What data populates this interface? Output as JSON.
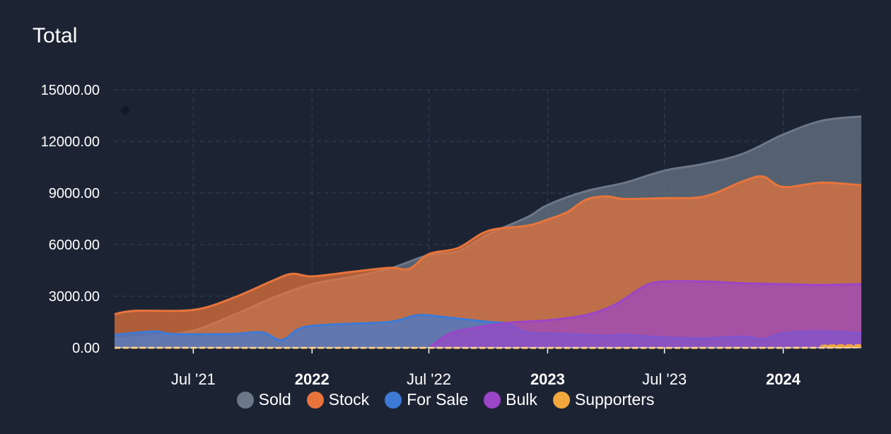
{
  "chart_title": "Total",
  "chart_data": {
    "type": "area",
    "title": "Total",
    "ylim": [
      0,
      15000
    ],
    "y_ticks": [
      "0.00",
      "3000.00",
      "6000.00",
      "9000.00",
      "12000.00",
      "15000.00"
    ],
    "x_range": [
      "2021-03-01",
      "2024-05-01"
    ],
    "x_ticks": [
      {
        "date": "2021-07-01",
        "label": "Jul '21",
        "bold": false
      },
      {
        "date": "2022-01-01",
        "label": "2022",
        "bold": true
      },
      {
        "date": "2022-07-01",
        "label": "Jul '22",
        "bold": false
      },
      {
        "date": "2023-01-01",
        "label": "2023",
        "bold": true
      },
      {
        "date": "2023-07-01",
        "label": "Jul '23",
        "bold": false
      },
      {
        "date": "2024-01-01",
        "label": "2024",
        "bold": true
      }
    ],
    "grid": true,
    "legend_position": "bottom",
    "series": [
      {
        "name": "Sold",
        "color": "#6c7888",
        "points": [
          [
            "2021-03-01",
            500
          ],
          [
            "2021-05-01",
            700
          ],
          [
            "2021-07-01",
            1000
          ],
          [
            "2021-09-01",
            1900
          ],
          [
            "2021-11-01",
            2900
          ],
          [
            "2022-01-01",
            3700
          ],
          [
            "2022-03-01",
            4100
          ],
          [
            "2022-05-01",
            4600
          ],
          [
            "2022-07-01",
            5400
          ],
          [
            "2022-08-15",
            5600
          ],
          [
            "2022-10-01",
            6600
          ],
          [
            "2022-12-01",
            7600
          ],
          [
            "2023-01-01",
            8300
          ],
          [
            "2023-03-01",
            9100
          ],
          [
            "2023-05-01",
            9600
          ],
          [
            "2023-07-01",
            10300
          ],
          [
            "2023-09-01",
            10700
          ],
          [
            "2023-11-01",
            11300
          ],
          [
            "2024-01-01",
            12400
          ],
          [
            "2024-03-01",
            13200
          ],
          [
            "2024-05-01",
            13450
          ]
        ]
      },
      {
        "name": "Stock",
        "color": "#e8743b",
        "points": [
          [
            "2021-03-01",
            1950
          ],
          [
            "2021-04-01",
            2150
          ],
          [
            "2021-07-01",
            2200
          ],
          [
            "2021-09-01",
            2900
          ],
          [
            "2021-11-01",
            3900
          ],
          [
            "2021-12-01",
            4300
          ],
          [
            "2022-01-01",
            4150
          ],
          [
            "2022-03-01",
            4400
          ],
          [
            "2022-05-01",
            4650
          ],
          [
            "2022-06-01",
            4600
          ],
          [
            "2022-07-01",
            5450
          ],
          [
            "2022-08-15",
            5800
          ],
          [
            "2022-10-01",
            6800
          ],
          [
            "2022-12-01",
            7100
          ],
          [
            "2023-01-01",
            7450
          ],
          [
            "2023-02-01",
            7900
          ],
          [
            "2023-03-01",
            8600
          ],
          [
            "2023-04-01",
            8800
          ],
          [
            "2023-05-01",
            8650
          ],
          [
            "2023-07-01",
            8700
          ],
          [
            "2023-09-01",
            8800
          ],
          [
            "2023-11-01",
            9700
          ],
          [
            "2023-12-01",
            9950
          ],
          [
            "2024-01-01",
            9350
          ],
          [
            "2024-03-01",
            9600
          ],
          [
            "2024-05-01",
            9450
          ]
        ]
      },
      {
        "name": "For Sale",
        "color": "#3d7ad6",
        "points": [
          [
            "2021-03-01",
            750
          ],
          [
            "2021-05-01",
            950
          ],
          [
            "2021-06-01",
            800
          ],
          [
            "2021-09-01",
            800
          ],
          [
            "2021-10-15",
            900
          ],
          [
            "2021-11-15",
            450
          ],
          [
            "2021-12-15",
            1150
          ],
          [
            "2022-02-01",
            1350
          ],
          [
            "2022-05-01",
            1500
          ],
          [
            "2022-06-15",
            1900
          ],
          [
            "2022-08-01",
            1750
          ],
          [
            "2022-10-01",
            1500
          ],
          [
            "2022-11-01",
            1400
          ],
          [
            "2022-12-01",
            900
          ],
          [
            "2023-02-01",
            800
          ],
          [
            "2023-04-01",
            700
          ],
          [
            "2023-05-01",
            750
          ],
          [
            "2023-07-01",
            600
          ],
          [
            "2023-09-01",
            550
          ],
          [
            "2023-11-01",
            650
          ],
          [
            "2023-12-01",
            500
          ],
          [
            "2024-01-01",
            850
          ],
          [
            "2024-03-01",
            950
          ],
          [
            "2024-05-01",
            850
          ]
        ]
      },
      {
        "name": "Bulk",
        "color": "#9b45c8",
        "points": [
          [
            "2022-07-01",
            0
          ],
          [
            "2022-08-01",
            800
          ],
          [
            "2022-09-01",
            1100
          ],
          [
            "2022-11-01",
            1450
          ],
          [
            "2023-01-01",
            1600
          ],
          [
            "2023-03-01",
            1900
          ],
          [
            "2023-04-15",
            2500
          ],
          [
            "2023-06-01",
            3600
          ],
          [
            "2023-07-01",
            3850
          ],
          [
            "2023-09-01",
            3850
          ],
          [
            "2023-11-01",
            3750
          ],
          [
            "2024-01-01",
            3700
          ],
          [
            "2024-03-01",
            3650
          ],
          [
            "2024-05-01",
            3700
          ]
        ]
      },
      {
        "name": "Supporters",
        "color": "#f0a83c",
        "points": [
          [
            "2021-03-01",
            0
          ],
          [
            "2024-02-01",
            0
          ],
          [
            "2024-03-01",
            120
          ],
          [
            "2024-05-01",
            150
          ]
        ]
      }
    ]
  }
}
